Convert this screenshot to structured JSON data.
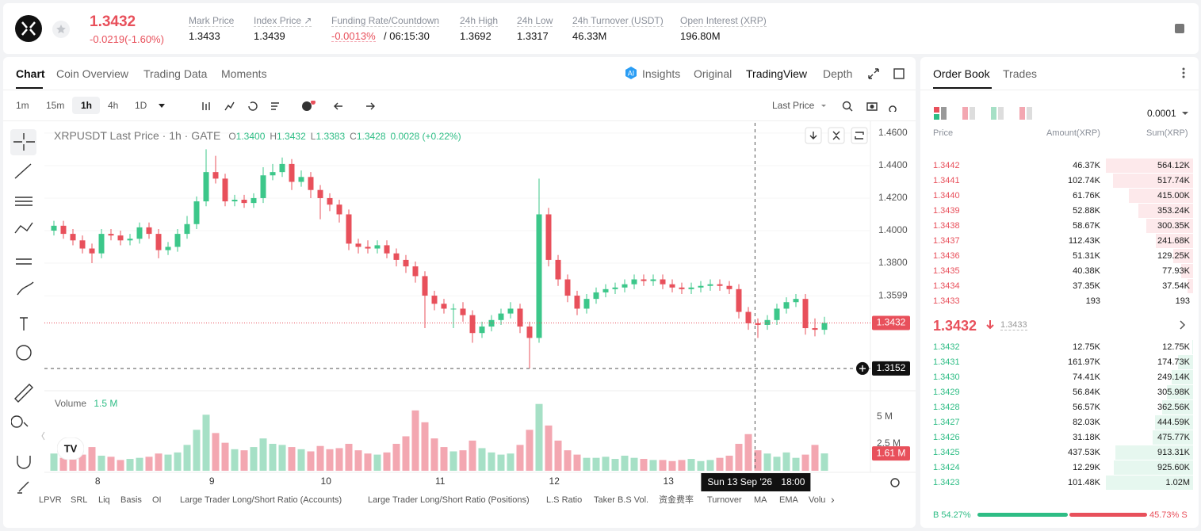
{
  "header": {
    "symbol_price": "1.3432",
    "change": "-0.0219(-1.60%)",
    "stats": [
      {
        "label": "Mark Price",
        "value": "1.3433"
      },
      {
        "label": "Index Price ↗",
        "value": "1.3439"
      },
      {
        "label": "Funding Rate/Countdown",
        "value": "-0.0013%",
        "extra": "/ 06:15:30"
      },
      {
        "label": "24h High",
        "value": "1.3692"
      },
      {
        "label": "24h Low",
        "value": "1.3317"
      },
      {
        "label": "24h Turnover (USDT)",
        "value": "46.33M"
      },
      {
        "label": "Open Interest (XRP)",
        "value": "196.80M"
      }
    ]
  },
  "tabs": [
    "Chart",
    "Coin Overview",
    "Trading Data",
    "Moments"
  ],
  "view_tabs": [
    "Insights",
    "Original",
    "TradingView",
    "Depth"
  ],
  "intervals": [
    "1m",
    "15m",
    "1h",
    "4h",
    "1D"
  ],
  "price_source": "Last Price",
  "chart": {
    "type": "candlestick",
    "title": "XRPUSDT Last Price · 1h · GATE",
    "ohlc_legend": [
      {
        "k": "O",
        "v": "1.3400"
      },
      {
        "k": "H",
        "v": "1.3432"
      },
      {
        "k": "L",
        "v": "1.3383"
      },
      {
        "k": "C",
        "v": "1.3428"
      }
    ],
    "legend_change": "0.0028 (+0.22%)",
    "volume_title": "Volume",
    "volume_legend": "1.5 M",
    "up_color": "#3cc78a",
    "down_color": "#e8505b",
    "up_volume_color": "#a6e0c6",
    "down_volume_color": "#f3a7b1",
    "open": [
      1.4,
      1.403,
      1.398,
      1.394,
      1.389,
      1.386,
      1.398,
      1.397,
      1.394,
      1.395,
      1.402,
      1.398,
      1.388,
      1.39,
      1.398,
      1.404,
      1.418,
      1.436,
      1.432,
      1.418,
      1.419,
      1.417,
      1.42,
      1.434,
      1.436,
      1.441,
      1.43,
      1.433,
      1.425,
      1.42,
      1.416,
      1.41,
      1.392,
      1.39,
      1.389,
      1.391,
      1.386,
      1.382,
      1.378,
      1.372,
      1.36,
      1.355,
      1.352,
      1.352,
      1.348,
      1.337,
      1.341,
      1.345,
      1.349,
      1.352,
      1.341,
      1.334,
      1.41,
      1.382,
      1.37,
      1.36,
      1.352,
      1.358,
      1.362,
      1.364,
      1.365,
      1.367,
      1.37,
      1.369,
      1.37,
      1.367,
      1.365,
      1.364,
      1.365,
      1.366,
      1.367,
      1.366,
      1.364,
      1.35,
      1.343,
      1.342,
      1.345,
      1.352,
      1.356,
      1.358,
      1.34,
      1.339
    ],
    "high": [
      1.406,
      1.406,
      1.401,
      1.397,
      1.392,
      1.401,
      1.401,
      1.4,
      1.398,
      1.405,
      1.405,
      1.401,
      1.393,
      1.401,
      1.409,
      1.421,
      1.45,
      1.446,
      1.435,
      1.422,
      1.422,
      1.423,
      1.439,
      1.441,
      1.445,
      1.444,
      1.437,
      1.436,
      1.428,
      1.423,
      1.419,
      1.413,
      1.395,
      1.394,
      1.394,
      1.394,
      1.389,
      1.385,
      1.381,
      1.375,
      1.363,
      1.358,
      1.355,
      1.356,
      1.351,
      1.344,
      1.348,
      1.352,
      1.356,
      1.355,
      1.344,
      1.432,
      1.414,
      1.385,
      1.373,
      1.363,
      1.361,
      1.365,
      1.367,
      1.368,
      1.37,
      1.373,
      1.373,
      1.373,
      1.373,
      1.37,
      1.368,
      1.368,
      1.369,
      1.37,
      1.37,
      1.369,
      1.367,
      1.353,
      1.346,
      1.348,
      1.355,
      1.359,
      1.361,
      1.361,
      1.346,
      1.347
    ],
    "low": [
      1.397,
      1.395,
      1.391,
      1.386,
      1.38,
      1.383,
      1.394,
      1.391,
      1.391,
      1.392,
      1.395,
      1.383,
      1.385,
      1.387,
      1.395,
      1.401,
      1.415,
      1.429,
      1.415,
      1.415,
      1.414,
      1.414,
      1.417,
      1.431,
      1.433,
      1.425,
      1.427,
      1.42,
      1.407,
      1.412,
      1.405,
      1.388,
      1.386,
      1.386,
      1.386,
      1.383,
      1.378,
      1.374,
      1.368,
      1.34,
      1.351,
      1.349,
      1.34,
      1.344,
      1.331,
      1.334,
      1.338,
      1.342,
      1.346,
      1.337,
      1.3152,
      1.331,
      1.378,
      1.366,
      1.356,
      1.348,
      1.349,
      1.355,
      1.359,
      1.361,
      1.362,
      1.364,
      1.366,
      1.366,
      1.364,
      1.362,
      1.361,
      1.361,
      1.362,
      1.363,
      1.363,
      1.361,
      1.346,
      1.339,
      1.334,
      1.339,
      1.342,
      1.349,
      1.353,
      1.336,
      1.335,
      1.336
    ],
    "close": [
      1.403,
      1.398,
      1.394,
      1.389,
      1.386,
      1.398,
      1.397,
      1.394,
      1.395,
      1.402,
      1.398,
      1.388,
      1.39,
      1.398,
      1.404,
      1.418,
      1.436,
      1.432,
      1.418,
      1.419,
      1.417,
      1.42,
      1.434,
      1.436,
      1.441,
      1.43,
      1.433,
      1.425,
      1.42,
      1.416,
      1.41,
      1.392,
      1.39,
      1.389,
      1.391,
      1.386,
      1.382,
      1.378,
      1.372,
      1.36,
      1.355,
      1.352,
      1.352,
      1.348,
      1.337,
      1.341,
      1.345,
      1.349,
      1.352,
      1.341,
      1.334,
      1.41,
      1.382,
      1.37,
      1.36,
      1.352,
      1.358,
      1.362,
      1.364,
      1.365,
      1.367,
      1.37,
      1.369,
      1.37,
      1.367,
      1.365,
      1.364,
      1.365,
      1.366,
      1.367,
      1.366,
      1.364,
      1.35,
      1.343,
      1.342,
      1.345,
      1.352,
      1.356,
      1.358,
      1.34,
      1.339,
      1.3432
    ],
    "volume": [
      1.6,
      1.2,
      2.0,
      1.5,
      2.2,
      1.4,
      1.3,
      1.0,
      1.1,
      1.2,
      1.3,
      1.6,
      1.5,
      1.7,
      2.4,
      3.8,
      5.2,
      3.5,
      2.6,
      2.0,
      1.9,
      2.2,
      3.0,
      2.5,
      2.4,
      2.2,
      2.0,
      1.8,
      2.3,
      2.0,
      2.1,
      2.5,
      1.9,
      1.6,
      1.5,
      1.7,
      2.5,
      3.2,
      5.6,
      4.5,
      3.0,
      2.2,
      1.8,
      1.9,
      2.8,
      2.1,
      1.7,
      1.5,
      1.6,
      2.4,
      3.8,
      6.2,
      4.2,
      2.8,
      1.9,
      1.5,
      1.2,
      1.2,
      1.3,
      1.1,
      1.4,
      1.2,
      1.1,
      1.0,
      1.0,
      0.9,
      1.0,
      1.1,
      0.9,
      1.0,
      1.2,
      1.4,
      2.5,
      3.4,
      1.9,
      1.6,
      1.3,
      1.7,
      1.2,
      1.5,
      2.4,
      1.61
    ],
    "xlim": [
      -0.5,
      81.5
    ],
    "xticks": [
      {
        "value": 4.6,
        "label": "8"
      },
      {
        "value": 16.6,
        "label": "9"
      },
      {
        "value": 28.6,
        "label": "10"
      },
      {
        "value": 40.6,
        "label": "11"
      },
      {
        "value": 52.6,
        "label": "12"
      },
      {
        "value": 64.6,
        "label": "13"
      }
    ],
    "ylim": [
      1.302,
      1.4663
    ],
    "yticks": [
      {
        "value": 1.46,
        "label": "1.4600"
      },
      {
        "value": 1.44,
        "label": "1.4400"
      },
      {
        "value": 1.42,
        "label": "1.4200"
      },
      {
        "value": 1.4,
        "label": "1.4000"
      },
      {
        "value": 1.38,
        "label": "1.3800"
      },
      {
        "value": 1.3599,
        "label": "1.3599"
      }
    ],
    "last_price": {
      "value": 1.3432,
      "label": "1.3432"
    },
    "low_line": {
      "value": 1.3152,
      "label": "1.3152"
    },
    "volume_lim": [
      0,
      7.28
    ],
    "volume_ticks": [
      {
        "value": 5,
        "label": "5 M"
      },
      {
        "value": 2.5,
        "label": "2.5 M"
      }
    ],
    "last_volume": {
      "value": 1.61,
      "label": "1.61 M"
    },
    "crosshair": {
      "x": 73.7,
      "date": "Sun 13 Sep '26",
      "time": "18:00"
    }
  },
  "indicators": [
    "LPVR",
    "SRL",
    "Liq",
    "Basis",
    "OI",
    "Large Trader Long/Short Ratio (Accounts)",
    "Large Trader Long/Short Ratio (Positions)",
    "L.S Ratio",
    "Taker B.S Vol.",
    "资金费率",
    "Turnover",
    "MA",
    "EMA",
    "Volu"
  ],
  "order_book": {
    "tabs": [
      "Order Book",
      "Trades"
    ],
    "precision": "0.0001",
    "columns": [
      "Price",
      "Amount(XRP)",
      "Sum(XRP)"
    ],
    "asks": [
      {
        "price": "1.3442",
        "amount": "46.37K",
        "sum": "564.12K"
      },
      {
        "price": "1.3441",
        "amount": "102.74K",
        "sum": "517.74K"
      },
      {
        "price": "1.3440",
        "amount": "61.76K",
        "sum": "415.00K"
      },
      {
        "price": "1.3439",
        "amount": "52.88K",
        "sum": "353.24K"
      },
      {
        "price": "1.3438",
        "amount": "58.67K",
        "sum": "300.35K"
      },
      {
        "price": "1.3437",
        "amount": "112.43K",
        "sum": "241.68K"
      },
      {
        "price": "1.3436",
        "amount": "51.31K",
        "sum": "129.25K"
      },
      {
        "price": "1.3435",
        "amount": "40.38K",
        "sum": "77.93K"
      },
      {
        "price": "1.3434",
        "amount": "37.35K",
        "sum": "37.54K"
      },
      {
        "price": "1.3433",
        "amount": "193",
        "sum": "193"
      }
    ],
    "mid_price": "1.3432",
    "mark_price": "1.3433",
    "bids": [
      {
        "price": "1.3432",
        "amount": "12.75K",
        "sum": "12.75K"
      },
      {
        "price": "1.3431",
        "amount": "161.97K",
        "sum": "174.73K"
      },
      {
        "price": "1.3430",
        "amount": "74.41K",
        "sum": "249.14K"
      },
      {
        "price": "1.3429",
        "amount": "56.84K",
        "sum": "305.98K"
      },
      {
        "price": "1.3428",
        "amount": "56.57K",
        "sum": "362.56K"
      },
      {
        "price": "1.3427",
        "amount": "82.03K",
        "sum": "444.59K"
      },
      {
        "price": "1.3426",
        "amount": "31.18K",
        "sum": "475.77K"
      },
      {
        "price": "1.3425",
        "amount": "437.53K",
        "sum": "913.31K"
      },
      {
        "price": "1.3424",
        "amount": "12.29K",
        "sum": "925.60K"
      },
      {
        "price": "1.3423",
        "amount": "101.48K",
        "sum": "1.02M"
      }
    ],
    "buy_ratio": {
      "value": 54.27,
      "label": "B 54.27%"
    },
    "sell_ratio": {
      "value": 45.73,
      "label": "45.73% S"
    }
  }
}
